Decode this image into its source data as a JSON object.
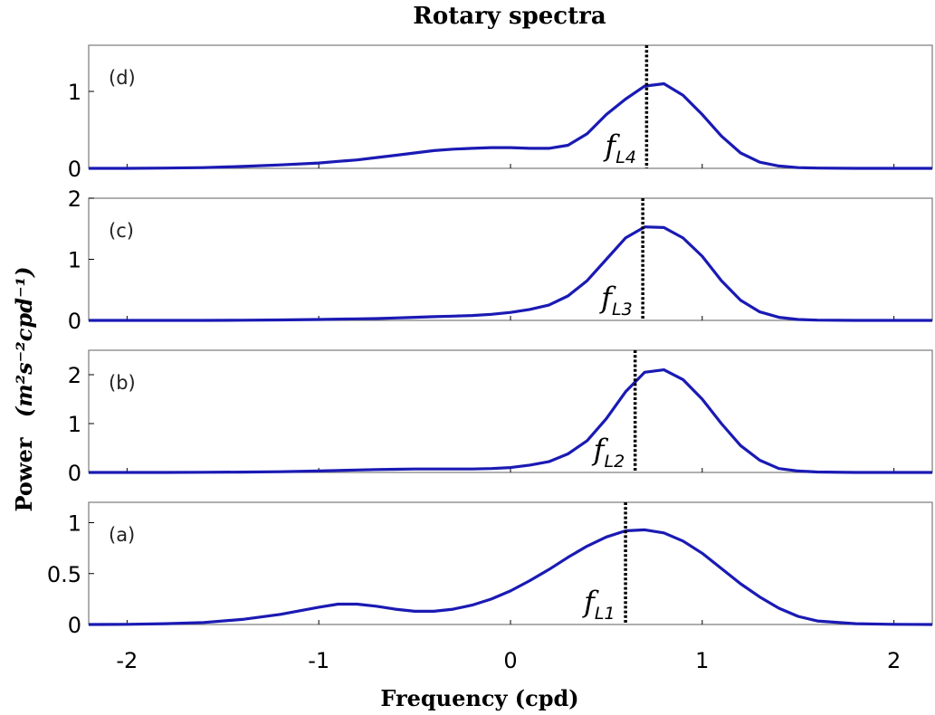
{
  "chart_data": {
    "type": "line",
    "title": "Rotary spectra",
    "xlabel": "Frequency (cpd)",
    "ylabel_prefix": "Power",
    "ylabel_units": "(m²s⁻²cpd⁻¹)",
    "xlim": [
      -2.2,
      2.2
    ],
    "xticks": [
      "-2",
      "-1",
      "0",
      "1",
      "2"
    ],
    "xtick_values": [
      -2,
      -1,
      0,
      1,
      2
    ],
    "line_color": "#1a1ab4",
    "frequency": [
      -2.2,
      -2.0,
      -1.8,
      -1.6,
      -1.4,
      -1.2,
      -1.0,
      -0.9,
      -0.8,
      -0.7,
      -0.6,
      -0.5,
      -0.4,
      -0.3,
      -0.2,
      -0.1,
      0.0,
      0.1,
      0.2,
      0.3,
      0.4,
      0.5,
      0.6,
      0.7,
      0.8,
      0.9,
      1.0,
      1.1,
      1.2,
      1.3,
      1.4,
      1.5,
      1.6,
      1.8,
      2.0,
      2.2
    ],
    "panels": [
      {
        "label": "(d)",
        "ylim": [
          0,
          1.6
        ],
        "yticks": [
          "0",
          "1"
        ],
        "ytick_values": [
          0,
          1
        ],
        "marker_text": "f",
        "marker_sub": "L4",
        "marker_x": 0.71,
        "values": [
          0,
          0,
          0.003,
          0.01,
          0.025,
          0.045,
          0.07,
          0.09,
          0.11,
          0.14,
          0.17,
          0.2,
          0.23,
          0.25,
          0.26,
          0.27,
          0.27,
          0.26,
          0.26,
          0.3,
          0.45,
          0.7,
          0.9,
          1.07,
          1.1,
          0.95,
          0.7,
          0.42,
          0.2,
          0.08,
          0.03,
          0.01,
          0.004,
          0,
          0,
          0
        ]
      },
      {
        "label": "(c)",
        "ylim": [
          0,
          2
        ],
        "yticks": [
          "0",
          "1",
          "2"
        ],
        "ytick_values": [
          0,
          1,
          2
        ],
        "marker_text": "f",
        "marker_sub": "L3",
        "marker_x": 0.69,
        "values": [
          0,
          0,
          0,
          0,
          0.003,
          0.008,
          0.015,
          0.02,
          0.025,
          0.03,
          0.04,
          0.05,
          0.06,
          0.07,
          0.08,
          0.1,
          0.13,
          0.18,
          0.25,
          0.4,
          0.65,
          1.0,
          1.35,
          1.53,
          1.52,
          1.35,
          1.05,
          0.65,
          0.33,
          0.14,
          0.05,
          0.015,
          0.005,
          0,
          0,
          0
        ]
      },
      {
        "label": "(b)",
        "ylim": [
          0,
          2.5
        ],
        "yticks": [
          "0",
          "1",
          "2"
        ],
        "ytick_values": [
          0,
          1,
          2
        ],
        "marker_text": "f",
        "marker_sub": "L2",
        "marker_x": 0.65,
        "values": [
          0,
          0,
          0,
          0.003,
          0.008,
          0.015,
          0.03,
          0.04,
          0.05,
          0.06,
          0.065,
          0.07,
          0.07,
          0.07,
          0.07,
          0.08,
          0.1,
          0.15,
          0.22,
          0.38,
          0.65,
          1.1,
          1.65,
          2.05,
          2.1,
          1.9,
          1.5,
          1.0,
          0.55,
          0.25,
          0.08,
          0.03,
          0.01,
          0,
          0,
          0
        ]
      },
      {
        "label": "(a)",
        "ylim": [
          0,
          1.2
        ],
        "yticks": [
          "0",
          "0.5",
          "1"
        ],
        "ytick_values": [
          0,
          0.5,
          1
        ],
        "marker_text": "f",
        "marker_sub": "L1",
        "marker_x": 0.6,
        "values": [
          0,
          0.002,
          0.008,
          0.02,
          0.05,
          0.1,
          0.17,
          0.2,
          0.2,
          0.18,
          0.15,
          0.13,
          0.13,
          0.15,
          0.19,
          0.25,
          0.33,
          0.43,
          0.54,
          0.66,
          0.77,
          0.86,
          0.92,
          0.93,
          0.9,
          0.82,
          0.7,
          0.55,
          0.4,
          0.27,
          0.16,
          0.08,
          0.035,
          0.008,
          0.002,
          0
        ]
      }
    ]
  }
}
